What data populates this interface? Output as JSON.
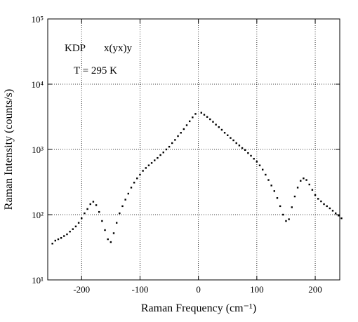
{
  "chart_data": {
    "type": "scatter",
    "xlabel": "Raman Frequency  (cm⁻¹)",
    "ylabel": "Raman Intensity  (counts/s)",
    "annotations": [
      "KDP",
      "x(yx)y",
      "T = 295 K"
    ],
    "color": "#000000",
    "log_y": true,
    "grid": true,
    "xlim": [
      -258,
      242
    ],
    "ylim": [
      10,
      100000
    ],
    "xticks": [
      -200,
      -100,
      0,
      100,
      200
    ],
    "yticks": [
      {
        "value": 10,
        "label": "10¹"
      },
      {
        "value": 100,
        "label": "10²"
      },
      {
        "value": 1000,
        "label": "10³"
      },
      {
        "value": 10000,
        "label": "10⁴"
      },
      {
        "value": 100000,
        "label": "10⁵"
      }
    ],
    "x": [
      -250,
      -245,
      -240,
      -235,
      -230,
      -225,
      -220,
      -215,
      -210,
      -205,
      -200,
      -195,
      -190,
      -185,
      -180,
      -175,
      -170,
      -165,
      -160,
      -155,
      -150,
      -145,
      -140,
      -135,
      -130,
      -125,
      -120,
      -115,
      -110,
      -105,
      -100,
      -95,
      -90,
      -85,
      -80,
      -75,
      -70,
      -65,
      -60,
      -55,
      -50,
      -45,
      -40,
      -35,
      -30,
      -25,
      -20,
      -15,
      -10,
      -5,
      5,
      10,
      15,
      20,
      25,
      30,
      35,
      40,
      45,
      50,
      55,
      60,
      65,
      70,
      75,
      80,
      85,
      90,
      95,
      100,
      105,
      110,
      115,
      120,
      125,
      130,
      135,
      140,
      145,
      150,
      155,
      160,
      165,
      170,
      175,
      180,
      185,
      190,
      195,
      200,
      205,
      210,
      215,
      220,
      225,
      230,
      235,
      240,
      245
    ],
    "values": [
      36,
      40,
      42,
      44,
      47,
      50,
      55,
      60,
      66,
      75,
      88,
      105,
      122,
      145,
      158,
      140,
      110,
      80,
      58,
      42,
      38,
      52,
      75,
      105,
      135,
      170,
      210,
      260,
      310,
      360,
      410,
      470,
      520,
      570,
      620,
      680,
      740,
      820,
      900,
      1000,
      1100,
      1250,
      1400,
      1600,
      1800,
      2050,
      2350,
      2700,
      3100,
      3500,
      3650,
      3400,
      3150,
      2900,
      2650,
      2400,
      2200,
      2000,
      1800,
      1650,
      1500,
      1380,
      1250,
      1150,
      1050,
      980,
      880,
      800,
      720,
      650,
      570,
      490,
      410,
      340,
      280,
      230,
      180,
      135,
      100,
      80,
      85,
      130,
      190,
      260,
      330,
      360,
      340,
      290,
      240,
      200,
      175,
      160,
      145,
      135,
      125,
      115,
      105,
      97,
      88
    ]
  }
}
